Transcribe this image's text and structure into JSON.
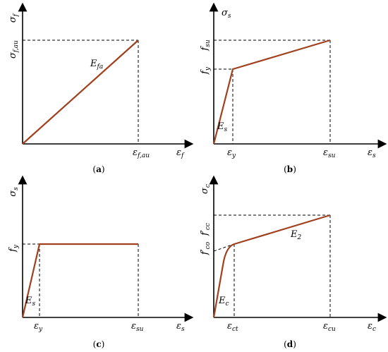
{
  "panels": [
    {
      "id": "a",
      "caption": "a",
      "y_label": "σ",
      "y_label_sub": "f",
      "x_label": "ε",
      "x_label_sub": "f",
      "y_tick": "σ",
      "y_tick_sub": "f,au",
      "x_tick": "ε",
      "x_tick_sub": "f,au",
      "slope_label": "E",
      "slope_label_sub": "fa"
    },
    {
      "id": "b",
      "caption": "b",
      "y_label": "σ",
      "y_label_sub": "s",
      "x_label": "ε",
      "x_label_sub": "s",
      "y_tick_top": "f",
      "y_tick_top_sub": "su",
      "y_tick_mid": "f",
      "y_tick_mid_sub": "y",
      "x_tick_1": "ε",
      "x_tick_1_sub": "y",
      "x_tick_2": "ε",
      "x_tick_2_sub": "su",
      "slope_label": "E",
      "slope_label_sub": "s"
    },
    {
      "id": "c",
      "caption": "c",
      "y_label": "σ",
      "y_label_sub": "s",
      "x_label": "ε",
      "x_label_sub": "s",
      "y_tick": "f",
      "y_tick_sub": "y",
      "x_tick_1": "ε",
      "x_tick_1_sub": "y",
      "x_tick_2": "ε",
      "x_tick_2_sub": "su",
      "slope_label": "E",
      "slope_label_sub": "s"
    },
    {
      "id": "d",
      "caption": "d",
      "y_label": "σ",
      "y_label_sub": "c",
      "x_label": "ε",
      "x_label_sub": "c",
      "y_tick_top": "f′",
      "y_tick_top_sub": "cc",
      "y_tick_mid": "f′",
      "y_tick_mid_sub": "co",
      "x_tick_1": "ε",
      "x_tick_1_sub": "ct",
      "x_tick_2": "ε",
      "x_tick_2_sub": "cu",
      "slope_label_1": "E",
      "slope_label_1_sub": "c",
      "slope_label_2": "E",
      "slope_label_2_sub": "2"
    }
  ],
  "colors": {
    "curve": "#a0401f",
    "axis": "#000000"
  }
}
